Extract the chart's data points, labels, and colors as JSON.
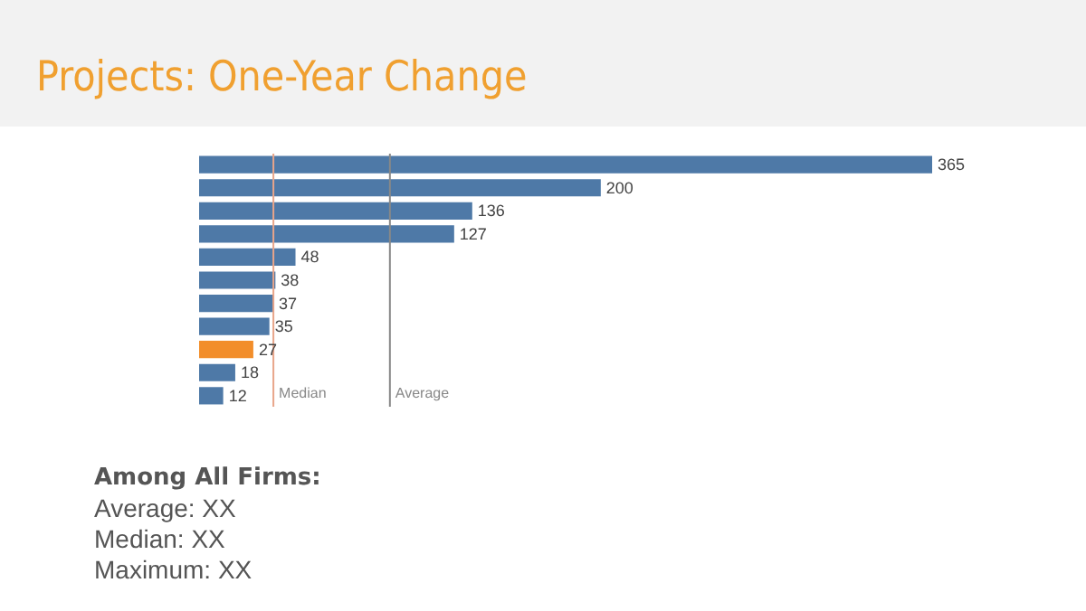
{
  "chart_data": {
    "type": "bar",
    "orientation": "horizontal",
    "title": "Projects: One-Year Change",
    "categories": [
      null,
      null,
      null,
      null,
      null,
      null,
      null,
      null,
      null,
      null,
      null
    ],
    "values": [
      365,
      200,
      136,
      127,
      48,
      38,
      37,
      35,
      27,
      18,
      12
    ],
    "colors": [
      "#4e79a7",
      "#4e79a7",
      "#4e79a7",
      "#4e79a7",
      "#4e79a7",
      "#4e79a7",
      "#4e79a7",
      "#4e79a7",
      "#f28e2b",
      "#4e79a7",
      "#4e79a7"
    ],
    "data_labels": true,
    "ref_lines": [
      {
        "axis": "x",
        "value": 37,
        "label": "Median",
        "color": "#e8a58a"
      },
      {
        "axis": "x",
        "value": 95,
        "label": "Average",
        "color": "#888888"
      }
    ],
    "annotations": [
      "Among All Firms:",
      "Average: XX",
      "Median: XX",
      "Maximum: XX"
    ]
  }
}
